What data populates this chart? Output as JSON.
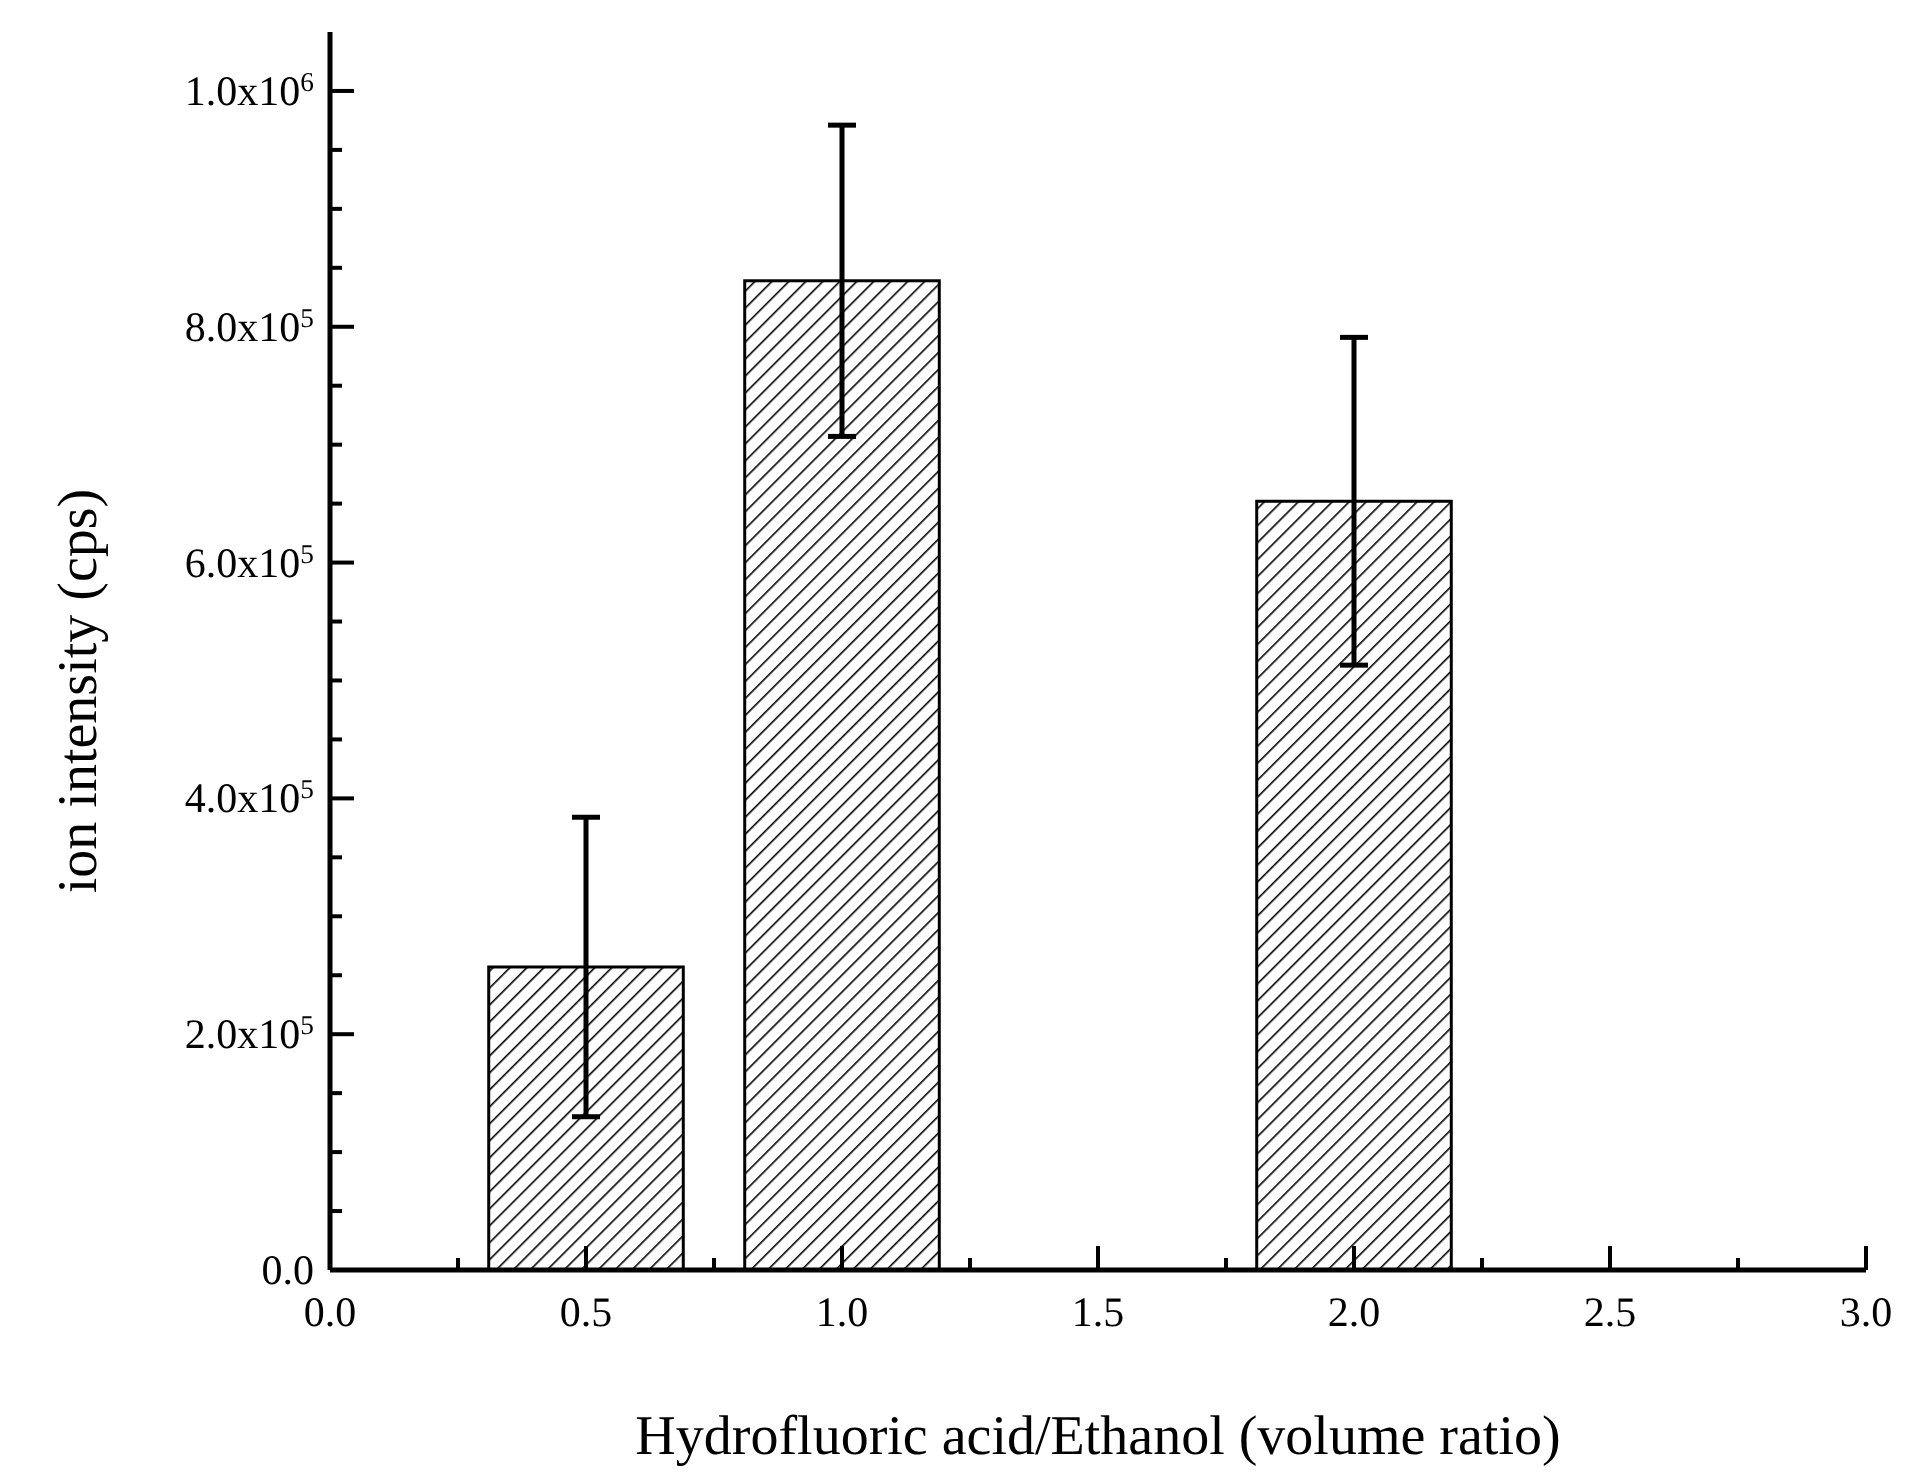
{
  "chart_data": {
    "type": "bar",
    "xlabel": "Hydrofluoric acid/Ethanol (volume ratio)",
    "ylabel": "ion intensity (cps)",
    "x": [
      0.5,
      1.0,
      2.0
    ],
    "series": [
      {
        "color": "#000000",
        "values": [
          257000,
          839000,
          652000
        ],
        "errors": [
          127000,
          132000,
          139000
        ]
      }
    ],
    "xlim": [
      0,
      3
    ],
    "xticks": [
      {
        "value": 0,
        "label": "0.0"
      },
      {
        "value": 0.25,
        "label": null
      },
      {
        "value": 0.5,
        "label": "0.5"
      },
      {
        "value": 0.75,
        "label": null
      },
      {
        "value": 1,
        "label": "1.0"
      },
      {
        "value": 1.25,
        "label": null
      },
      {
        "value": 1.5,
        "label": "1.5"
      },
      {
        "value": 1.75,
        "label": null
      },
      {
        "value": 2,
        "label": "2.0"
      },
      {
        "value": 2.25,
        "label": null
      },
      {
        "value": 2.5,
        "label": "2.5"
      },
      {
        "value": 2.75,
        "label": null
      },
      {
        "value": 3,
        "label": "3.0"
      }
    ],
    "ylim": [
      0,
      1050000
    ],
    "yticks": [
      {
        "value": 0,
        "label": "0.0"
      },
      {
        "value": 50000,
        "label": null
      },
      {
        "value": 100000,
        "label": null
      },
      {
        "value": 150000,
        "label": null
      },
      {
        "value": 200000,
        "label": "2.0x10$^{5}$"
      },
      {
        "value": 250000,
        "label": null
      },
      {
        "value": 300000,
        "label": null
      },
      {
        "value": 350000,
        "label": null
      },
      {
        "value": 400000,
        "label": "4.0x10$^{5}$"
      },
      {
        "value": 450000,
        "label": null
      },
      {
        "value": 500000,
        "label": null
      },
      {
        "value": 550000,
        "label": null
      },
      {
        "value": 600000,
        "label": "6.0x10$^{5}$"
      },
      {
        "value": 650000,
        "label": null
      },
      {
        "value": 700000,
        "label": null
      },
      {
        "value": 750000,
        "label": null
      },
      {
        "value": 800000,
        "label": "8.0x10$^{5}$"
      },
      {
        "value": 850000,
        "label": null
      },
      {
        "value": 900000,
        "label": null
      },
      {
        "value": 950000,
        "label": null
      },
      {
        "value": 1000000,
        "label": "1.0x10$^{6}$"
      }
    ],
    "grid": false
  }
}
